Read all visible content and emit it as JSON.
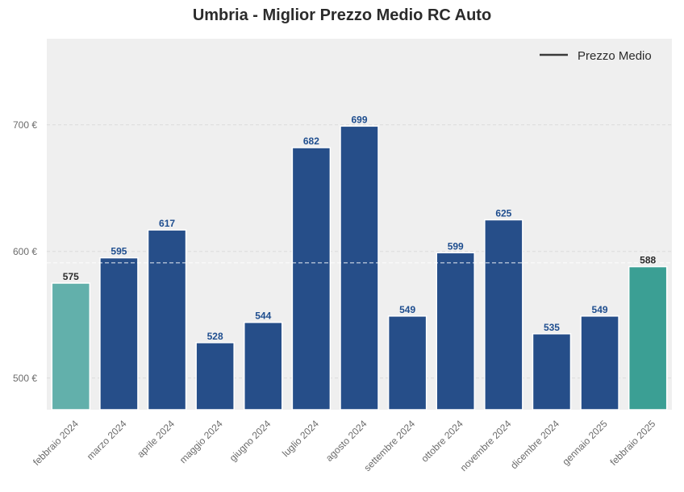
{
  "chart_data": {
    "type": "bar",
    "title": "Umbria - Miglior Prezzo Medio RC Auto",
    "xlabel": "",
    "ylabel": "",
    "categories": [
      "febbraio 2024",
      "marzo 2024",
      "aprile 2024",
      "maggio 2024",
      "giugno 2024",
      "luglio 2024",
      "agosto 2024",
      "settembre 2024",
      "ottobre 2024",
      "novembre 2024",
      "dicembre 2024",
      "gennaio 2025",
      "febbraio 2025"
    ],
    "values": [
      575,
      595,
      617,
      528,
      544,
      682,
      699,
      549,
      599,
      625,
      535,
      549,
      588
    ],
    "value_labels": [
      "575",
      "595",
      "617",
      "528",
      "544",
      "682",
      "699",
      "549",
      "599",
      "625",
      "535",
      "549",
      "588"
    ],
    "ylim": [
      475,
      768
    ],
    "yticks": [
      500,
      600,
      700
    ],
    "ytick_labels": [
      "500 €",
      "600 €",
      "700 €"
    ],
    "reference_line": {
      "name": "Prezzo Medio",
      "value": 591
    },
    "legend": {
      "entries": [
        "Prezzo Medio"
      ],
      "placement": "top-right"
    },
    "grid": true,
    "colors": {
      "bar_default": "#264e89",
      "bar_first": "#62b0ab",
      "bar_last": "#3b9f94",
      "label_default": "#1f4e8f",
      "label_highlight": "#2b2b2b",
      "plot_background": "#efefef",
      "mean_line": "#ffffff",
      "legend_line": "#3a3a3a"
    },
    "highlight_indices": [
      0,
      12
    ]
  }
}
